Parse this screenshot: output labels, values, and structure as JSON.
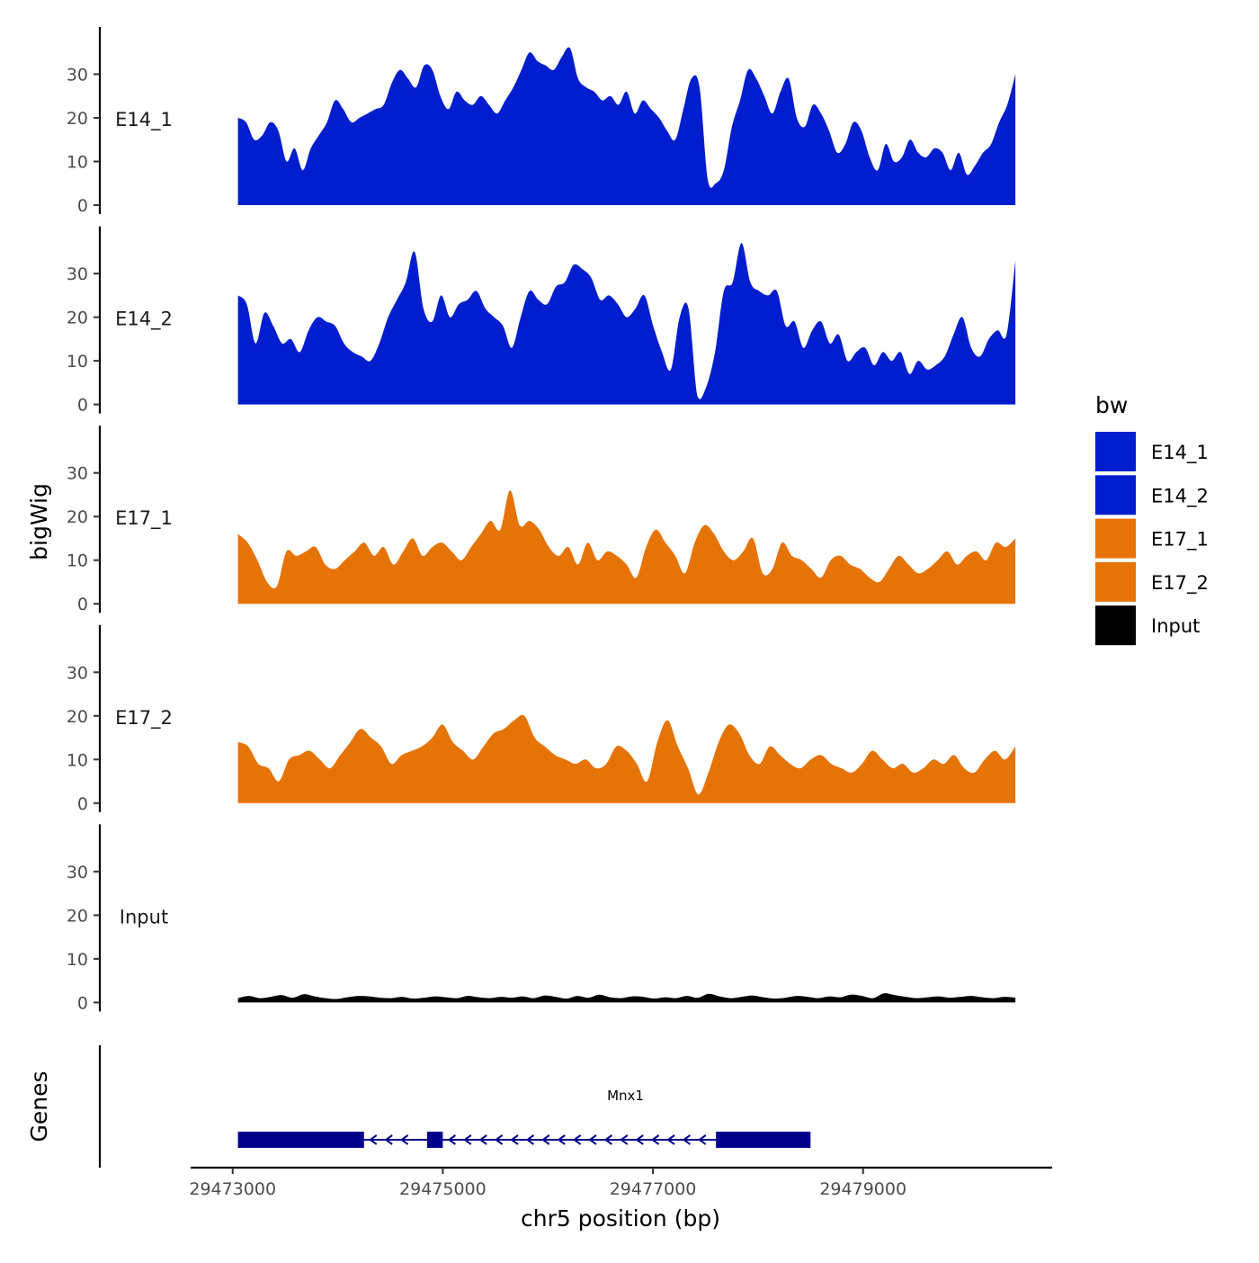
{
  "chart_data": {
    "type": "area",
    "ylabel": "bigWig",
    "xlabel": "chr5 position (bp)",
    "x_ticks": [
      29473000,
      29475000,
      29477000,
      29479000
    ],
    "x_tick_labels": [
      "29473000",
      "29475000",
      "29477000",
      "29479000"
    ],
    "xlim": [
      29472600,
      29480800
    ],
    "ylim": [
      0,
      40
    ],
    "y_ticks": [
      0,
      10,
      20,
      30
    ],
    "y_tick_labels": [
      "0",
      "10",
      "20",
      "30"
    ],
    "x_start": 29473050,
    "x_end": 29480450,
    "legend": {
      "title": "bw",
      "position": "right",
      "entries": [
        {
          "label": "E14_1",
          "color": "#001ecd"
        },
        {
          "label": "E14_2",
          "color": "#001ecd"
        },
        {
          "label": "E17_1",
          "color": "#e67305"
        },
        {
          "label": "E17_2",
          "color": "#e67305"
        },
        {
          "label": "Input",
          "color": "#000000"
        }
      ]
    },
    "series": [
      {
        "name": "E14_1",
        "color": "#001ecd",
        "values": [
          20,
          19,
          15,
          16,
          19,
          17,
          10,
          13,
          8,
          13,
          16,
          19,
          24,
          22,
          19,
          20,
          21,
          22,
          23,
          28,
          31,
          29,
          27,
          32,
          31,
          25,
          22,
          26,
          24,
          23,
          25,
          23,
          21,
          24,
          27,
          31,
          35,
          33,
          32,
          31,
          34,
          36,
          29,
          27,
          26,
          24,
          25,
          23,
          26,
          21,
          24,
          22,
          20,
          17,
          15,
          22,
          29,
          27,
          6,
          5,
          8,
          18,
          24,
          31,
          29,
          25,
          21,
          26,
          29,
          20,
          18,
          23,
          21,
          17,
          12,
          14,
          19,
          17,
          11,
          8,
          14,
          10,
          11,
          15,
          12,
          11,
          13,
          12,
          8,
          12,
          7,
          9,
          12,
          14,
          19,
          23,
          30
        ]
      },
      {
        "name": "E14_2",
        "color": "#001ecd",
        "values": [
          25,
          23,
          14,
          21,
          18,
          14,
          15,
          12,
          17,
          20,
          19,
          18,
          14,
          12,
          11,
          10,
          14,
          20,
          24,
          28,
          35,
          22,
          19,
          25,
          20,
          23,
          24,
          26,
          22,
          20,
          18,
          13,
          20,
          26,
          24,
          23,
          27,
          28,
          32,
          31,
          29,
          24,
          25,
          23,
          20,
          22,
          25,
          18,
          12,
          8,
          20,
          22,
          2,
          4,
          12,
          26,
          28,
          37,
          28,
          26,
          25,
          26,
          18,
          19,
          13,
          17,
          19,
          14,
          16,
          10,
          12,
          13,
          9,
          12,
          10,
          12,
          7,
          10,
          8,
          9,
          11,
          16,
          20,
          13,
          11,
          15,
          17,
          16,
          33
        ]
      },
      {
        "name": "E17_1",
        "color": "#e67305",
        "values": [
          16,
          14,
          10,
          5,
          4,
          12,
          11,
          12,
          13,
          9,
          8,
          10,
          12,
          14,
          11,
          13,
          9,
          12,
          15,
          11,
          13,
          14,
          12,
          10,
          13,
          16,
          19,
          17,
          26,
          18,
          19,
          17,
          13,
          11,
          13,
          9,
          14,
          10,
          12,
          11,
          9,
          6,
          13,
          17,
          14,
          11,
          7,
          14,
          18,
          16,
          12,
          10,
          12,
          15,
          7,
          8,
          14,
          11,
          10,
          8,
          6,
          10,
          11,
          9,
          8,
          6,
          5,
          8,
          11,
          9,
          7,
          8,
          10,
          12,
          9,
          11,
          12,
          10,
          14,
          13,
          15
        ]
      },
      {
        "name": "E17_2",
        "color": "#e67305",
        "values": [
          14,
          13,
          9,
          8,
          5,
          10,
          11,
          12,
          10,
          8,
          11,
          14,
          17,
          15,
          13,
          9,
          11,
          12,
          13,
          15,
          18,
          14,
          12,
          10,
          13,
          16,
          17,
          19,
          20,
          15,
          13,
          11,
          10,
          9,
          10,
          8,
          9,
          13,
          12,
          9,
          5,
          14,
          19,
          13,
          8,
          2,
          7,
          14,
          18,
          16,
          11,
          9,
          13,
          11,
          9,
          8,
          10,
          11,
          9,
          8,
          7,
          9,
          12,
          10,
          8,
          9,
          7,
          8,
          10,
          9,
          11,
          8,
          7,
          10,
          12,
          10,
          13
        ]
      },
      {
        "name": "Input",
        "color": "#000000",
        "values": [
          1,
          1.5,
          1,
          1.3,
          1.7,
          1.1,
          1.9,
          1.4,
          1,
          0.8,
          1.2,
          1.5,
          1.4,
          1.1,
          1,
          1.3,
          0.9,
          1.1,
          1.4,
          1.2,
          1,
          1.5,
          1.2,
          1,
          1.3,
          1.1,
          1.4,
          1,
          1.6,
          1.3,
          0.9,
          1.5,
          1.1,
          1.8,
          1.2,
          1,
          1.4,
          1.3,
          0.9,
          1.2,
          1,
          1.5,
          1.1,
          2,
          1.4,
          1,
          1.3,
          1.6,
          1.2,
          0.9,
          1.1,
          1.5,
          1.3,
          1,
          1.4,
          1.2,
          1.8,
          1.5,
          1,
          2.1,
          1.7,
          1.3,
          1,
          1.2,
          1.4,
          1.1,
          1.3,
          1.5,
          1.2,
          1,
          1.3,
          1.1
        ]
      }
    ],
    "genes_panel": {
      "label": "Genes",
      "gene_name": "Mnx1",
      "strand": "-",
      "gene_start": 29473050,
      "gene_end": 29478500,
      "exons": [
        [
          29473050,
          29474250
        ],
        [
          29474850,
          29475000
        ],
        [
          29477600,
          29478500
        ]
      ],
      "line_color": "#00008b"
    }
  }
}
